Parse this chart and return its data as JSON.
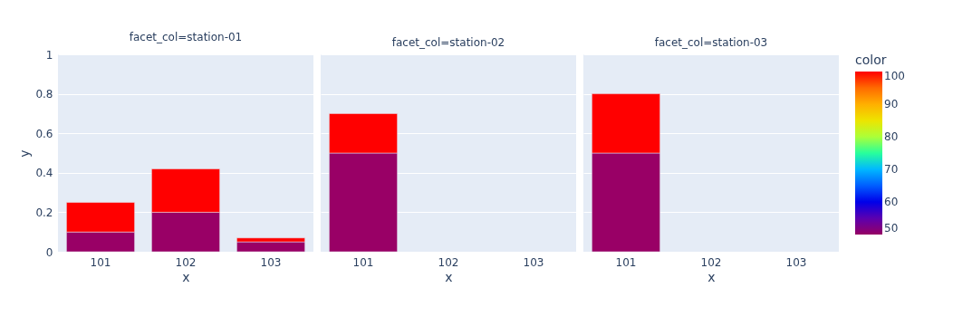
{
  "chart_data": [
    {
      "type": "bar",
      "stacked": true,
      "title": "facet_col=station-01",
      "xlabel": "x",
      "ylabel": "y",
      "categories": [
        "101",
        "102",
        "103"
      ],
      "ylim": [
        0,
        1
      ],
      "yticks": [
        0,
        0.2,
        0.4,
        0.6,
        0.8,
        1
      ],
      "grid": "y",
      "series": [
        {
          "color": "#990066",
          "values": [
            0.1,
            0.2,
            0.05
          ]
        },
        {
          "color": "#ff0000",
          "values": [
            0.15,
            0.22,
            0.02
          ]
        }
      ]
    },
    {
      "type": "bar",
      "stacked": true,
      "title": "facet_col=station-02",
      "xlabel": "x",
      "categories": [
        "101",
        "102",
        "103"
      ],
      "ylim": [
        0,
        1
      ],
      "yticks": [
        0,
        0.2,
        0.4,
        0.6,
        0.8,
        1
      ],
      "grid": "y",
      "tick_labels": "x",
      "series": [
        {
          "color": "#990066",
          "values": [
            0.5,
            null,
            null
          ]
        },
        {
          "color": "#ff0000",
          "values": [
            0.2,
            null,
            null
          ]
        }
      ]
    },
    {
      "type": "bar",
      "stacked": true,
      "title": "facet_col=station-03",
      "xlabel": "x",
      "categories": [
        "101",
        "102",
        "103"
      ],
      "ylim": [
        0,
        1
      ],
      "yticks": [
        0,
        0.2,
        0.4,
        0.6,
        0.8,
        1
      ],
      "grid": "y",
      "tick_labels": "x",
      "clabel": "color",
      "clim": [
        50,
        100
      ],
      "cticks": [
        50,
        60,
        70,
        80,
        90,
        100
      ],
      "series": [
        {
          "color": "#990066",
          "values": [
            0.5,
            null,
            null
          ]
        },
        {
          "color": "#ff0000",
          "values": [
            0.3,
            null,
            null
          ]
        }
      ]
    }
  ]
}
